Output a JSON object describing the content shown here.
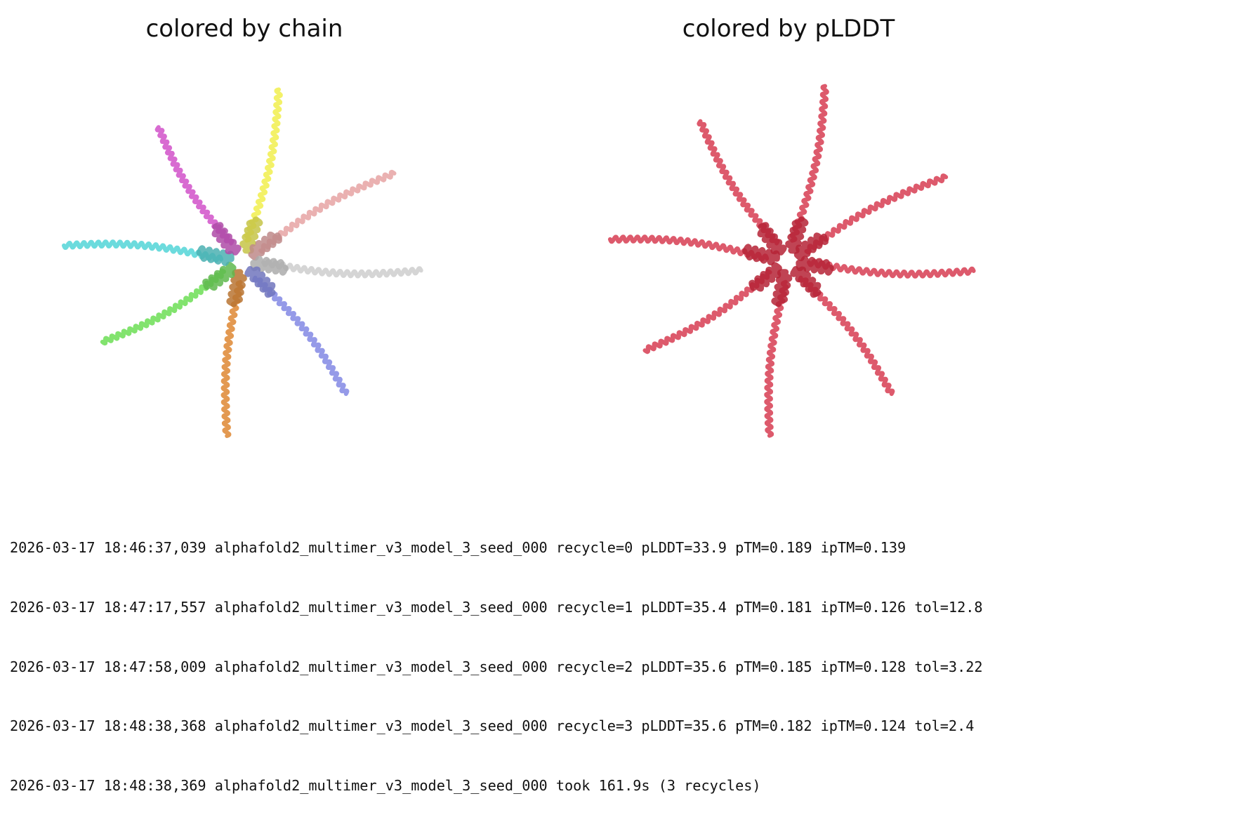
{
  "figure": {
    "panels": [
      {
        "title": "colored by chain",
        "coloring": "chain",
        "chain_colors": [
          "#f2ef58",
          "#e8a8a8",
          "#d0d0d0",
          "#8a8fe6",
          "#e08e3e",
          "#74e05e",
          "#5cd7d9",
          "#d45bcc"
        ]
      },
      {
        "title": "colored by pLDDT",
        "coloring": "plddt",
        "plddt_color": "#d9485c",
        "plddt_core_color": "#b52336"
      }
    ]
  },
  "log": {
    "lines": [
      "2026-03-17 18:46:37,039 alphafold2_multimer_v3_model_3_seed_000 recycle=0 pLDDT=33.9 pTM=0.189 ipTM=0.139",
      "2026-03-17 18:47:17,557 alphafold2_multimer_v3_model_3_seed_000 recycle=1 pLDDT=35.4 pTM=0.181 ipTM=0.126 tol=12.8",
      "2026-03-17 18:47:58,009 alphafold2_multimer_v3_model_3_seed_000 recycle=2 pLDDT=35.6 pTM=0.185 ipTM=0.128 tol=3.22",
      "2026-03-17 18:48:38,368 alphafold2_multimer_v3_model_3_seed_000 recycle=3 pLDDT=35.6 pTM=0.182 ipTM=0.124 tol=2.4",
      "2026-03-17 18:48:38,369 alphafold2_multimer_v3_model_3_seed_000 took 161.9s (3 recycles)"
    ]
  }
}
